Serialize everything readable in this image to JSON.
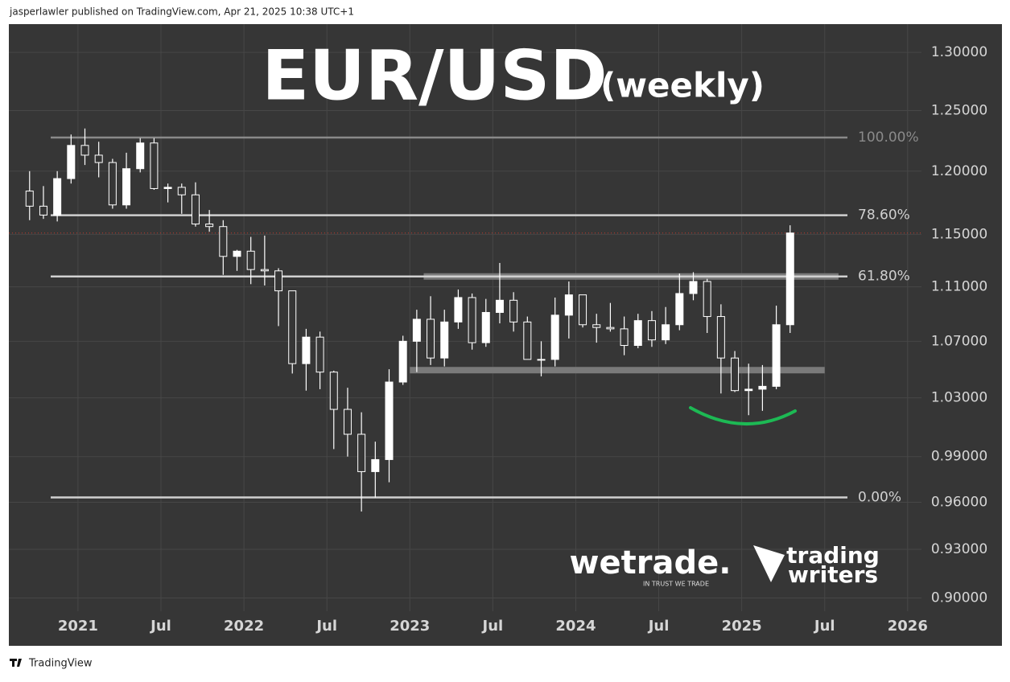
{
  "page": {
    "header": "jasperlawler published on TradingView.com, Apr 21, 2025 10:38 UTC+1",
    "footer_brand": "TradingView",
    "wetrade": "wetrade.",
    "wetrade_tagline": "IN TRUST WE TRADE",
    "trading_writers": [
      "trading",
      "writers"
    ]
  },
  "chart_data": {
    "type": "candlestick",
    "title": "EUR/USD",
    "subtitle": "(weekly)",
    "log_scale": true,
    "grid": true,
    "up_color": "#ffffff",
    "down_color": "#363636",
    "wick_color": "#ffffff",
    "last_price_color": "#c0392b",
    "x": [
      "2020-09",
      "2020-10",
      "2020-11",
      "2020-12",
      "2021-01",
      "2021-02",
      "2021-03",
      "2021-04",
      "2021-05",
      "2021-06",
      "2021-07",
      "2021-08",
      "2021-09",
      "2021-10",
      "2021-11",
      "2021-12",
      "2022-01",
      "2022-02",
      "2022-03",
      "2022-04",
      "2022-05",
      "2022-06",
      "2022-07",
      "2022-08",
      "2022-09",
      "2022-10",
      "2022-11",
      "2022-12",
      "2023-01",
      "2023-02",
      "2023-03",
      "2023-04",
      "2023-05",
      "2023-06",
      "2023-07",
      "2023-08",
      "2023-09",
      "2023-10",
      "2023-11",
      "2023-12",
      "2024-01",
      "2024-02",
      "2024-03",
      "2024-04",
      "2024-05",
      "2024-06",
      "2024-07",
      "2024-08",
      "2024-09",
      "2024-10",
      "2024-11",
      "2024-12",
      "2025-01",
      "2025-02",
      "2025-03",
      "2025-04"
    ],
    "open": [
      1.184,
      1.172,
      1.165,
      1.194,
      1.221,
      1.213,
      1.207,
      1.173,
      1.202,
      1.223,
      1.186,
      1.187,
      1.181,
      1.158,
      1.156,
      1.133,
      1.137,
      1.123,
      1.122,
      1.107,
      1.054,
      1.073,
      1.048,
      1.022,
      1.005,
      0.98,
      0.988,
      1.041,
      1.07,
      1.086,
      1.058,
      1.084,
      1.102,
      1.069,
      1.091,
      1.1,
      1.084,
      1.057,
      1.057,
      1.089,
      1.104,
      1.082,
      1.08,
      1.079,
      1.067,
      1.085,
      1.071,
      1.082,
      1.105,
      1.114,
      1.088,
      1.058,
      1.035,
      1.036,
      1.038,
      1.082
    ],
    "high": [
      1.2,
      1.188,
      1.2,
      1.23,
      1.235,
      1.224,
      1.21,
      1.215,
      1.227,
      1.227,
      1.19,
      1.19,
      1.191,
      1.169,
      1.161,
      1.138,
      1.148,
      1.149,
      1.124,
      1.107,
      1.079,
      1.077,
      1.049,
      1.037,
      1.02,
      1.0,
      1.05,
      1.074,
      1.093,
      1.103,
      1.093,
      1.108,
      1.105,
      1.101,
      1.128,
      1.106,
      1.088,
      1.07,
      1.102,
      1.114,
      1.104,
      1.09,
      1.098,
      1.088,
      1.09,
      1.092,
      1.095,
      1.12,
      1.121,
      1.116,
      1.097,
      1.063,
      1.054,
      1.053,
      1.096,
      1.157
    ],
    "low": [
      1.161,
      1.162,
      1.16,
      1.19,
      1.205,
      1.195,
      1.17,
      1.17,
      1.199,
      1.185,
      1.175,
      1.166,
      1.156,
      1.152,
      1.119,
      1.122,
      1.112,
      1.111,
      1.081,
      1.047,
      1.035,
      1.036,
      0.995,
      0.99,
      0.954,
      0.963,
      0.973,
      1.039,
      1.048,
      1.053,
      1.052,
      1.079,
      1.064,
      1.066,
      1.083,
      1.077,
      1.057,
      1.045,
      1.052,
      1.072,
      1.08,
      1.069,
      1.077,
      1.06,
      1.065,
      1.066,
      1.068,
      1.078,
      1.1,
      1.076,
      1.033,
      1.034,
      1.018,
      1.021,
      1.036,
      1.076
    ],
    "close": [
      1.172,
      1.165,
      1.194,
      1.221,
      1.213,
      1.207,
      1.173,
      1.202,
      1.223,
      1.186,
      1.187,
      1.181,
      1.158,
      1.156,
      1.133,
      1.137,
      1.123,
      1.122,
      1.107,
      1.054,
      1.073,
      1.048,
      1.022,
      1.005,
      0.98,
      0.988,
      1.041,
      1.07,
      1.086,
      1.058,
      1.084,
      1.102,
      1.069,
      1.091,
      1.1,
      1.084,
      1.057,
      1.057,
      1.089,
      1.104,
      1.082,
      1.08,
      1.079,
      1.067,
      1.085,
      1.071,
      1.082,
      1.105,
      1.114,
      1.088,
      1.058,
      1.035,
      1.036,
      1.038,
      1.082,
      1.151
    ],
    "xlim": [
      "2020-08",
      "2026-02"
    ],
    "xticks": [
      {
        "value": "2021-01",
        "label": "2021"
      },
      {
        "value": "2021-07",
        "label": "Jul"
      },
      {
        "value": "2022-01",
        "label": "2022"
      },
      {
        "value": "2022-07",
        "label": "Jul"
      },
      {
        "value": "2023-01",
        "label": "2023"
      },
      {
        "value": "2023-07",
        "label": "Jul"
      },
      {
        "value": "2024-01",
        "label": "2024"
      },
      {
        "value": "2024-07",
        "label": "Jul"
      },
      {
        "value": "2025-01",
        "label": "2025"
      },
      {
        "value": "2025-07",
        "label": "Jul"
      },
      {
        "value": "2026-01",
        "label": "2026"
      }
    ],
    "ylim": [
      0.892,
      1.325
    ],
    "yticks": [
      {
        "value": 0.9,
        "label": "0.90000"
      },
      {
        "value": 0.93,
        "label": "0.93000"
      },
      {
        "value": 0.96,
        "label": "0.96000"
      },
      {
        "value": 0.99,
        "label": "0.99000"
      },
      {
        "value": 1.03,
        "label": "1.03000"
      },
      {
        "value": 1.07,
        "label": "1.07000"
      },
      {
        "value": 1.11,
        "label": "1.11000"
      },
      {
        "value": 1.15,
        "label": "1.15000"
      },
      {
        "value": 1.2,
        "label": "1.20000"
      },
      {
        "value": 1.25,
        "label": "1.25000"
      },
      {
        "value": 1.3,
        "label": "1.30000"
      }
    ],
    "fib_levels": [
      {
        "label": "100.00%",
        "value": 1.2275,
        "color": "#8a8a8a"
      },
      {
        "label": "78.60%",
        "value": 1.1649,
        "color": "#d0d0d0"
      },
      {
        "label": "61.80%",
        "value": 1.1178,
        "color": "#d0d0d0"
      },
      {
        "label": "0.00%",
        "value": 0.9631,
        "color": "#d0d0d0"
      }
    ],
    "zones": [
      {
        "value": 1.1178,
        "x": [
          "2023-02",
          "2025-08"
        ],
        "color": "#7a7a7a"
      },
      {
        "value": 1.0494,
        "x": [
          "2023-01",
          "2025-07"
        ],
        "color": "#7a7a7a"
      }
    ]
  }
}
